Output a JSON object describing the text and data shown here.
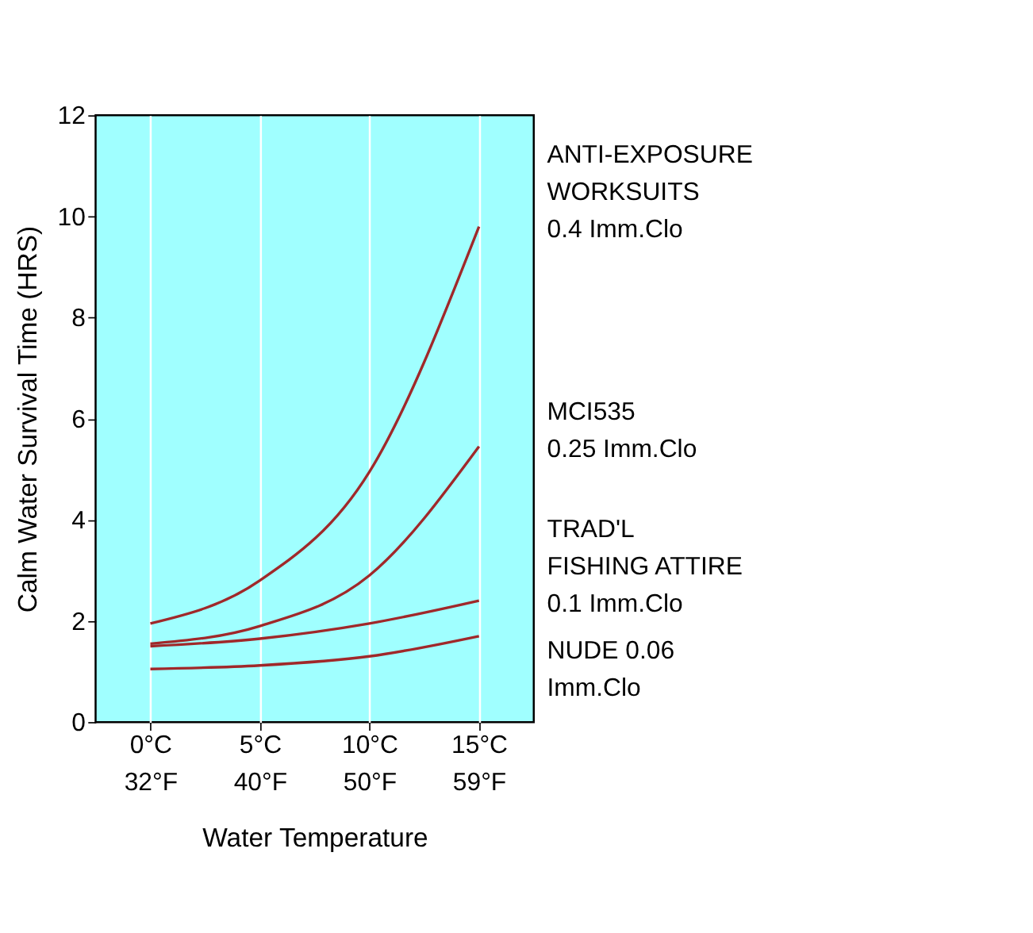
{
  "chart_data": {
    "type": "line",
    "xlabel": "Water Temperature",
    "ylabel": "Calm Water Survival Time (HRS)",
    "categories": [
      "0°C\n32°F",
      "5°C\n40°F",
      "10°C\n50°F",
      "15°C\n59°F"
    ],
    "ylim": [
      0,
      12
    ],
    "yticks": [
      0,
      2,
      4,
      6,
      8,
      10,
      12
    ],
    "grid": "x",
    "marker": "none",
    "line_style": "solid",
    "series": [
      {
        "name": "ANTI-EXPOSURE\nWORKSUITS\n0.4 Imm.Clo",
        "color": "#a0282a",
        "values": [
          1.95,
          2.8,
          4.95,
          9.8
        ]
      },
      {
        "name": "MCI535\n0.25 Imm.Clo",
        "color": "#a0282a",
        "values": [
          1.55,
          1.9,
          2.9,
          5.45
        ]
      },
      {
        "name": "TRAD'L\nFISHING ATTIRE\n0.1 Imm.Clo",
        "color": "#a0282a",
        "values": [
          1.5,
          1.65,
          1.95,
          2.4
        ]
      },
      {
        "name": "NUDE 0.06\nImm.Clo",
        "color": "#a0282a",
        "values": [
          1.05,
          1.12,
          1.3,
          1.7
        ]
      }
    ]
  }
}
